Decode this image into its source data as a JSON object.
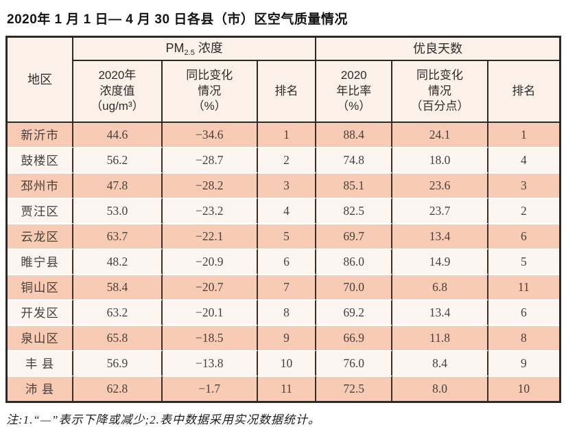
{
  "page": {
    "title": "2020年 1 月 1 日— 4 月 30 日各县（市）区空气质量情况",
    "note": "注:1.“—”表示下降或减少;2.表中数据采用实况数据统计。"
  },
  "colors": {
    "row_salmon": "#f8cbb4",
    "row_light": "#fdf5ef",
    "header_bg": "#fbf1e9",
    "grid_dark": "#2c2823",
    "row_separator": "#ffffff"
  },
  "table": {
    "region_header": "地区",
    "pm_group": {
      "prefix": "PM",
      "subscript": "2.5",
      "suffix": "浓度"
    },
    "days_group": "优良天数",
    "subheaders": {
      "conc": "2020年\n浓度值\n（ug/m³）",
      "conc_change": "同比变化\n情况\n（%）",
      "rank_pm": "排名",
      "ratio": "2020\n年比率\n（%）",
      "ratio_change": "同比变化\n情况\n（百分点）",
      "rank_days": "排名"
    },
    "rows": [
      {
        "region": "新沂市",
        "conc": "44.6",
        "conc_change": "−34.6",
        "rank_pm": "1",
        "ratio": "88.4",
        "ratio_change": "24.1",
        "rank_days": "1"
      },
      {
        "region": "鼓楼区",
        "conc": "56.2",
        "conc_change": "−28.7",
        "rank_pm": "2",
        "ratio": "74.8",
        "ratio_change": "18.0",
        "rank_days": "4"
      },
      {
        "region": "邳州市",
        "conc": "47.8",
        "conc_change": "−28.2",
        "rank_pm": "3",
        "ratio": "85.1",
        "ratio_change": "23.6",
        "rank_days": "3"
      },
      {
        "region": "贾汪区",
        "conc": "53.0",
        "conc_change": "−23.2",
        "rank_pm": "4",
        "ratio": "82.5",
        "ratio_change": "23.7",
        "rank_days": "2"
      },
      {
        "region": "云龙区",
        "conc": "63.7",
        "conc_change": "−22.1",
        "rank_pm": "5",
        "ratio": "69.7",
        "ratio_change": "13.4",
        "rank_days": "6"
      },
      {
        "region": "睢宁县",
        "conc": "48.2",
        "conc_change": "−20.9",
        "rank_pm": "6",
        "ratio": "86.0",
        "ratio_change": "14.9",
        "rank_days": "5"
      },
      {
        "region": "铜山区",
        "conc": "58.4",
        "conc_change": "−20.7",
        "rank_pm": "7",
        "ratio": "70.0",
        "ratio_change": "6.8",
        "rank_days": "11"
      },
      {
        "region": "开发区",
        "conc": "63.2",
        "conc_change": "−20.1",
        "rank_pm": "8",
        "ratio": "69.2",
        "ratio_change": "13.4",
        "rank_days": "6"
      },
      {
        "region": "泉山区",
        "conc": "65.8",
        "conc_change": "−18.5",
        "rank_pm": "9",
        "ratio": "66.9",
        "ratio_change": "11.8",
        "rank_days": "8"
      },
      {
        "region": "丰 县",
        "conc": "56.9",
        "conc_change": "−13.8",
        "rank_pm": "10",
        "ratio": "76.0",
        "ratio_change": "8.4",
        "rank_days": "9"
      },
      {
        "region": "沛 县",
        "conc": "62.8",
        "conc_change": "−1.7",
        "rank_pm": "11",
        "ratio": "72.5",
        "ratio_change": "8.0",
        "rank_days": "10"
      }
    ]
  }
}
